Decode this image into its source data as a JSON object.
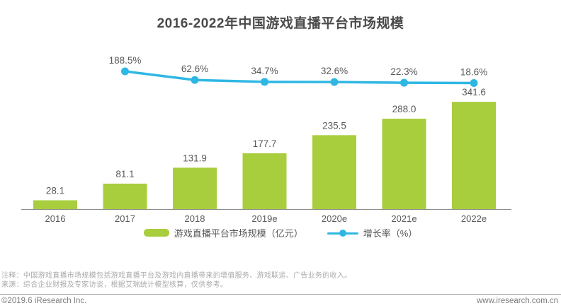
{
  "chart_data": {
    "type": "bar",
    "title": "2016-2022年中国游戏直播平台市场规模",
    "categories": [
      "2016",
      "2017",
      "2018",
      "2019e",
      "2020e",
      "2021e",
      "2022e"
    ],
    "series": [
      {
        "name": "游戏直播平台市场规模（亿元）",
        "type": "bar",
        "color": "#a8ce3d",
        "values": [
          28.1,
          81.1,
          131.9,
          177.7,
          235.5,
          288.0,
          341.6
        ]
      },
      {
        "name": "增长率（%）",
        "type": "line",
        "color": "#2fb7e4",
        "values": [
          null,
          188.5,
          62.6,
          34.7,
          32.6,
          22.3,
          18.6
        ],
        "label_suffix": "%"
      }
    ],
    "bar_axis_range": [
      0,
      360
    ],
    "grid": false,
    "legend_position": "bottom",
    "label_color": "#595959",
    "axis_line_color": "#8c8c8c"
  },
  "notes": {
    "note1": "注释：中国游戏直播市场规模包括游戏直播平台及游戏内直播带来的增值服务、游戏联运、广告业务的收入。",
    "note2": "来源：综合企业财报及专家访谈，根据艾瑞统计模型核算，仅供参考。"
  },
  "footer": {
    "copyright": "©2019.6 iResearch Inc.",
    "website": "www.iresearch.com.cn"
  }
}
